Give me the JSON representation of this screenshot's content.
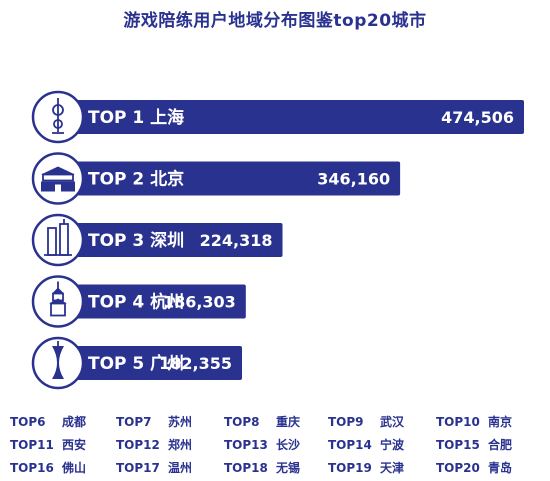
{
  "title": "游戏陪练用户地域分布图鉴top20城市",
  "chart_data": {
    "type": "bar",
    "orientation": "horizontal",
    "title": "游戏陪练用户地域分布图鉴top20城市",
    "bars": [
      {
        "rank": "TOP 1",
        "city": "上海",
        "value": 474506,
        "label": "474,506",
        "icon": "oriental-pearl-tower-icon"
      },
      {
        "rank": "TOP 2",
        "city": "北京",
        "value": 346160,
        "label": "346,160",
        "icon": "tiananmen-icon"
      },
      {
        "rank": "TOP 3",
        "city": "深圳",
        "value": 224318,
        "label": "224,318",
        "icon": "skyscraper-icon"
      },
      {
        "rank": "TOP 4",
        "city": "杭州",
        "value": 186303,
        "label": "186,303",
        "icon": "pagoda-icon"
      },
      {
        "rank": "TOP 5",
        "city": "广州",
        "value": 182355,
        "label": "182,355",
        "icon": "canton-tower-icon"
      }
    ],
    "others": [
      {
        "rank": "TOP6",
        "city": "成都"
      },
      {
        "rank": "TOP7",
        "city": "苏州"
      },
      {
        "rank": "TOP8",
        "city": "重庆"
      },
      {
        "rank": "TOP9",
        "city": "武汉"
      },
      {
        "rank": "TOP10",
        "city": "南京"
      },
      {
        "rank": "TOP11",
        "city": "西安"
      },
      {
        "rank": "TOP12",
        "city": "郑州"
      },
      {
        "rank": "TOP13",
        "city": "长沙"
      },
      {
        "rank": "TOP14",
        "city": "宁波"
      },
      {
        "rank": "TOP15",
        "city": "合肥"
      },
      {
        "rank": "TOP16",
        "city": "佛山"
      },
      {
        "rank": "TOP17",
        "city": "温州"
      },
      {
        "rank": "TOP18",
        "city": "无锡"
      },
      {
        "rank": "TOP19",
        "city": "天津"
      },
      {
        "rank": "TOP20",
        "city": "青岛"
      }
    ],
    "colors": {
      "bar": "#2a3290",
      "text": "#2a3290",
      "bar_text": "#ffffff"
    }
  }
}
